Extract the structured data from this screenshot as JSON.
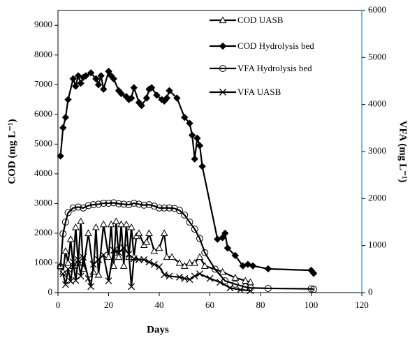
{
  "chart_data": {
    "type": "line",
    "x_label": "Days",
    "y_label": "COD (mg L⁻¹)",
    "y2_label": "VFA (mg L⁻¹)",
    "xlim": [
      0,
      120
    ],
    "xticks": [
      0,
      20,
      40,
      60,
      80,
      100,
      120
    ],
    "ylim": [
      0,
      9500
    ],
    "yticks": [
      0,
      1000,
      2000,
      3000,
      4000,
      5000,
      6000,
      7000,
      8000,
      9000
    ],
    "y2lim": [
      0,
      6000
    ],
    "y2ticks": [
      0,
      1000,
      2000,
      3000,
      4000,
      5000,
      6000
    ],
    "series": [
      {
        "name": "COD UASB",
        "color": "#000000",
        "marker": "triangle",
        "axis": "y",
        "x": [
          1,
          2,
          3,
          4,
          5,
          6,
          7,
          8,
          9,
          10,
          12,
          14,
          15,
          16,
          18,
          20,
          21,
          22,
          23,
          24,
          25,
          26,
          27,
          28,
          29,
          30,
          31,
          32,
          34,
          35,
          36,
          38,
          40,
          42,
          43,
          45,
          48,
          50,
          52,
          54,
          56,
          58,
          65,
          70,
          74,
          76
        ],
        "values": [
          900,
          700,
          1400,
          1000,
          1800,
          900,
          2200,
          1000,
          2400,
          800,
          2000,
          700,
          2200,
          600,
          2300,
          1200,
          2300,
          900,
          2400,
          1200,
          2300,
          900,
          2300,
          1200,
          2200,
          1200,
          1900,
          2000,
          1600,
          1700,
          2000,
          1400,
          1500,
          2000,
          1200,
          1200,
          1000,
          900,
          1000,
          1000,
          1200,
          900,
          700,
          500,
          400,
          350
        ]
      },
      {
        "name": "COD Hydrolysis bed",
        "color": "#000000",
        "marker": "diamond",
        "axis": "y",
        "x": [
          1,
          2,
          3,
          4,
          6,
          7,
          8,
          9,
          10,
          11,
          13,
          15,
          16,
          17,
          18,
          20,
          21,
          22,
          24,
          25,
          27,
          28,
          29,
          30,
          32,
          33,
          35,
          36,
          37,
          39,
          41,
          42,
          43,
          44,
          47,
          50,
          52,
          53,
          54,
          55,
          56,
          57,
          63,
          65,
          66,
          67,
          70,
          73,
          75,
          77,
          83,
          100,
          101
        ],
        "values": [
          4600,
          5550,
          5900,
          6500,
          7200,
          6950,
          7300,
          7050,
          7250,
          7300,
          7400,
          7200,
          7000,
          7300,
          6850,
          7450,
          7300,
          7200,
          6800,
          6700,
          6600,
          6500,
          6550,
          6900,
          6400,
          6300,
          6550,
          6850,
          6900,
          6650,
          6500,
          6450,
          6550,
          6800,
          6550,
          5900,
          5700,
          5300,
          4500,
          5200,
          4950,
          4250,
          1800,
          1850,
          2000,
          1500,
          1250,
          900,
          950,
          900,
          800,
          750,
          650
        ]
      },
      {
        "name": "VFA Hydrolysis bed",
        "color": "#000000",
        "marker": "circle",
        "axis": "y2",
        "x": [
          1,
          2,
          3,
          4,
          6,
          8,
          10,
          12,
          14,
          16,
          18,
          20,
          22,
          24,
          26,
          28,
          30,
          32,
          34,
          36,
          38,
          40,
          42,
          44,
          46,
          48,
          50,
          52,
          54,
          56,
          58,
          62,
          66,
          70,
          74,
          76,
          83,
          100,
          101
        ],
        "values": [
          550,
          1250,
          1500,
          1700,
          1800,
          1820,
          1800,
          1850,
          1870,
          1880,
          1900,
          1900,
          1910,
          1890,
          1880,
          1870,
          1900,
          1880,
          1860,
          1870,
          1840,
          1800,
          1800,
          1800,
          1790,
          1750,
          1650,
          1500,
          1350,
          1150,
          850,
          500,
          250,
          180,
          120,
          100,
          90,
          80,
          70
        ]
      },
      {
        "name": "VFA UASB",
        "color": "#000000",
        "marker": "x",
        "axis": "y2",
        "x": [
          2,
          3,
          4,
          5,
          6,
          7,
          8,
          9,
          10,
          12,
          13,
          14,
          16,
          18,
          20,
          22,
          24,
          26,
          28,
          29,
          30,
          32,
          34,
          36,
          38,
          40,
          42,
          44,
          48,
          50,
          52,
          54,
          56,
          60,
          64,
          68,
          72,
          76
        ],
        "values": [
          400,
          170,
          500,
          240,
          650,
          260,
          700,
          350,
          750,
          300,
          130,
          600,
          700,
          800,
          250,
          900,
          850,
          950,
          820,
          130,
          720,
          700,
          700,
          650,
          600,
          550,
          380,
          350,
          330,
          300,
          280,
          350,
          400,
          300,
          220,
          100,
          60,
          40
        ]
      }
    ]
  }
}
